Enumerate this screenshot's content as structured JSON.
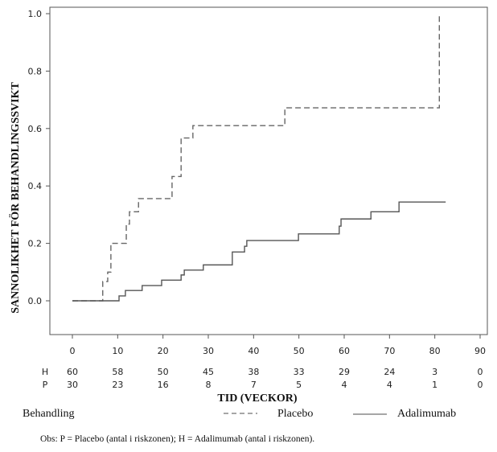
{
  "chart_data": {
    "type": "line",
    "step": true,
    "title": "",
    "xlabel": "TID (VECKOR)",
    "ylabel": "SANNOLIKHET FÖR BEHANDLINGSSVIKT",
    "xlim": [
      -5,
      91
    ],
    "ylim": [
      -0.12,
      1.02
    ],
    "x_ticks": [
      0,
      10,
      20,
      30,
      40,
      50,
      60,
      70,
      80,
      90
    ],
    "x_tick_labels": [
      "0",
      "10",
      "20",
      "30",
      "40",
      "50",
      "60",
      "70",
      "80",
      "90"
    ],
    "y_ticks": [
      0.0,
      0.2,
      0.4,
      0.6,
      0.8,
      1.0
    ],
    "y_tick_labels": [
      "0.0",
      "0.2",
      "0.4",
      "0.6",
      "0.8",
      "1.0"
    ],
    "grid": false,
    "series": [
      {
        "name": "Placebo",
        "style": "dashed",
        "color": "#666666",
        "points": [
          [
            0,
            0.0
          ],
          [
            6.7,
            0.067
          ],
          [
            7.8,
            0.1
          ],
          [
            8.5,
            0.2
          ],
          [
            11.9,
            0.267
          ],
          [
            12.6,
            0.31
          ],
          [
            14.6,
            0.356
          ],
          [
            22.0,
            0.433
          ],
          [
            22.5,
            0.433
          ],
          [
            24.0,
            0.567
          ],
          [
            26.6,
            0.61
          ],
          [
            46.9,
            0.672
          ],
          [
            81.0,
            1.0
          ]
        ],
        "end_x": 81.0
      },
      {
        "name": "Adalimumab",
        "style": "solid",
        "color": "#555555",
        "points": [
          [
            0,
            0.0
          ],
          [
            10.3,
            0.017
          ],
          [
            11.7,
            0.036
          ],
          [
            15.4,
            0.053
          ],
          [
            19.7,
            0.072
          ],
          [
            24.0,
            0.09
          ],
          [
            24.7,
            0.107
          ],
          [
            28.9,
            0.125
          ],
          [
            35.3,
            0.17
          ],
          [
            38.0,
            0.19
          ],
          [
            38.5,
            0.21
          ],
          [
            49.9,
            0.233
          ],
          [
            58.9,
            0.26
          ],
          [
            59.3,
            0.285
          ],
          [
            65.9,
            0.31
          ],
          [
            72.1,
            0.344
          ]
        ],
        "end_x": 82.4
      }
    ],
    "risk_table": {
      "rows": [
        {
          "label": "H",
          "values": [
            "60",
            "58",
            "50",
            "45",
            "38",
            "33",
            "29",
            "24",
            "3",
            "0"
          ]
        },
        {
          "label": "P",
          "values": [
            "30",
            "23",
            "16",
            "8",
            "7",
            "5",
            "4",
            "4",
            "1",
            "0"
          ]
        }
      ]
    },
    "legend": {
      "title": "Behandling",
      "placement": "bottom",
      "entries": [
        {
          "label": "Placebo",
          "style": "dashed"
        },
        {
          "label": "Adalimumab",
          "style": "solid"
        }
      ]
    },
    "note": "Obs: P = Placebo (antal i riskzonen); H = Adalimumab (antal i riskzonen)."
  }
}
